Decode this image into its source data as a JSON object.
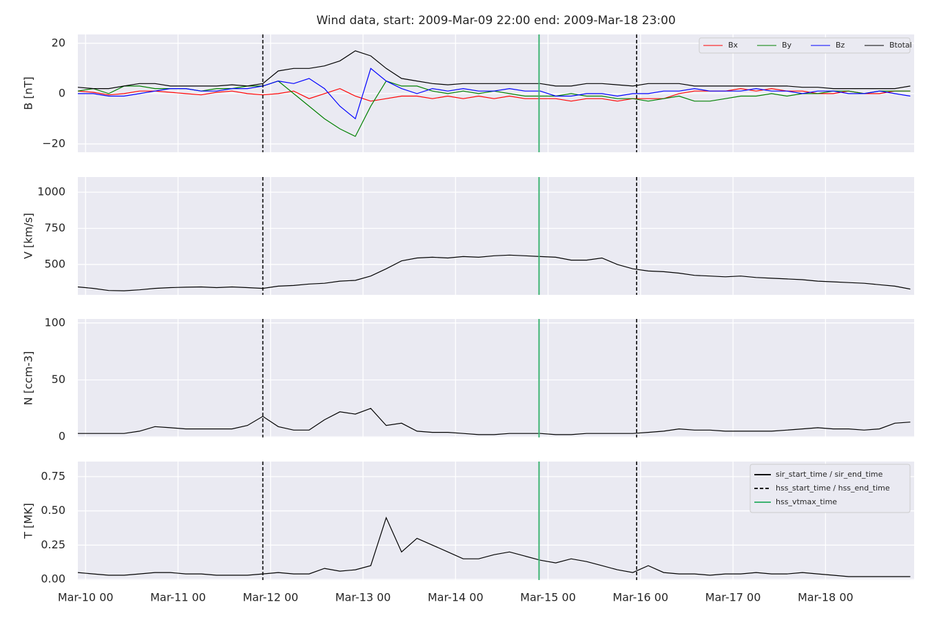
{
  "chart_data": [
    {
      "type": "line",
      "title": "Wind data, start: 2009-Mar-09 22:00  end: 2009-Mar-18 23:00",
      "ylabel": "B [nT]",
      "x": [
        "2009-03-09T22:00",
        "2009-03-10T02:00",
        "2009-03-10T06:00",
        "2009-03-10T10:00",
        "2009-03-10T14:00",
        "2009-03-10T18:00",
        "2009-03-10T22:00",
        "2009-03-11T02:00",
        "2009-03-11T06:00",
        "2009-03-11T10:00",
        "2009-03-11T14:00",
        "2009-03-11T18:00",
        "2009-03-11T22:00",
        "2009-03-12T02:00",
        "2009-03-12T06:00",
        "2009-03-12T10:00",
        "2009-03-12T14:00",
        "2009-03-12T18:00",
        "2009-03-12T22:00",
        "2009-03-13T02:00",
        "2009-03-13T06:00",
        "2009-03-13T10:00",
        "2009-03-13T14:00",
        "2009-03-13T18:00",
        "2009-03-13T22:00",
        "2009-03-14T02:00",
        "2009-03-14T06:00",
        "2009-03-14T10:00",
        "2009-03-14T14:00",
        "2009-03-14T18:00",
        "2009-03-14T22:00",
        "2009-03-15T02:00",
        "2009-03-15T06:00",
        "2009-03-15T10:00",
        "2009-03-15T14:00",
        "2009-03-15T18:00",
        "2009-03-15T22:00",
        "2009-03-16T02:00",
        "2009-03-16T06:00",
        "2009-03-16T10:00",
        "2009-03-16T14:00",
        "2009-03-16T18:00",
        "2009-03-16T22:00",
        "2009-03-17T02:00",
        "2009-03-17T06:00",
        "2009-03-17T10:00",
        "2009-03-17T14:00",
        "2009-03-17T18:00",
        "2009-03-17T22:00",
        "2009-03-18T02:00",
        "2009-03-18T06:00",
        "2009-03-18T10:00",
        "2009-03-18T14:00",
        "2009-03-18T18:00",
        "2009-03-18T22:00"
      ],
      "series": [
        {
          "name": "Bx",
          "color": "#ff0000",
          "values": [
            1,
            0.5,
            -0.5,
            0,
            1,
            1,
            0.5,
            0,
            -0.5,
            0.5,
            1,
            0,
            -0.5,
            0,
            1,
            -2,
            0,
            2,
            -1,
            -3,
            -2,
            -1,
            -1,
            -2,
            -1,
            -2,
            -1,
            -2,
            -1,
            -2,
            -2,
            -2,
            -3,
            -2,
            -2,
            -3,
            -2,
            -2,
            -2,
            0,
            1,
            1,
            1,
            2,
            1,
            2,
            1,
            1,
            0,
            0,
            1,
            0,
            0,
            1,
            1
          ]
        },
        {
          "name": "By",
          "color": "#008000",
          "values": [
            1,
            2,
            0,
            3,
            3,
            2,
            2,
            2,
            1,
            2,
            2,
            3,
            3,
            5,
            0,
            -5,
            -10,
            -14,
            -17,
            -5,
            5,
            3,
            3,
            1,
            0,
            1,
            0,
            1,
            0,
            -1,
            -1,
            -1,
            0,
            -1,
            -1,
            -2,
            -2,
            -3,
            -2,
            -1,
            -3,
            -3,
            -2,
            -1,
            -1,
            0,
            -1,
            0,
            0,
            1,
            1,
            0,
            1,
            1,
            1
          ]
        },
        {
          "name": "Bz",
          "color": "#0000ff",
          "values": [
            0,
            0,
            -1,
            -1,
            0,
            1,
            2,
            2,
            1,
            1,
            2,
            2,
            3,
            5,
            4,
            6,
            2,
            -5,
            -10,
            10,
            5,
            2,
            0,
            2,
            1,
            2,
            1,
            1,
            2,
            1,
            1,
            -1,
            -1,
            0,
            0,
            -1,
            0,
            0,
            1,
            1,
            2,
            1,
            1,
            1,
            2,
            1,
            1,
            0,
            1,
            1,
            0,
            0,
            1,
            0,
            -1
          ]
        },
        {
          "name": "Btotal",
          "color": "#000000",
          "values": [
            2.5,
            2,
            2,
            3,
            4,
            4,
            3,
            3,
            3,
            3,
            3.5,
            3,
            4,
            9,
            10,
            10,
            11,
            13,
            17,
            15,
            10,
            6,
            5,
            4,
            3.5,
            4,
            4,
            4,
            4,
            4,
            4,
            3,
            3,
            4,
            4,
            3.5,
            3,
            4,
            4,
            4,
            3,
            3,
            3,
            3,
            3,
            3,
            3,
            2.5,
            2.5,
            2,
            2,
            2,
            2,
            2,
            3
          ]
        }
      ],
      "ylim": [
        -23.3,
        23.5
      ],
      "yticks": [
        {
          "value": -20,
          "label": "−20"
        },
        0,
        20
      ],
      "grid": true,
      "legend": "upper right"
    },
    {
      "type": "line",
      "ylabel": "V [km/s]",
      "x": [
        "2009-03-09T22:00",
        "2009-03-10T02:00",
        "2009-03-10T06:00",
        "2009-03-10T10:00",
        "2009-03-10T14:00",
        "2009-03-10T18:00",
        "2009-03-10T22:00",
        "2009-03-11T02:00",
        "2009-03-11T06:00",
        "2009-03-11T10:00",
        "2009-03-11T14:00",
        "2009-03-11T18:00",
        "2009-03-11T22:00",
        "2009-03-12T02:00",
        "2009-03-12T06:00",
        "2009-03-12T10:00",
        "2009-03-12T14:00",
        "2009-03-12T18:00",
        "2009-03-12T22:00",
        "2009-03-13T02:00",
        "2009-03-13T06:00",
        "2009-03-13T10:00",
        "2009-03-13T14:00",
        "2009-03-13T18:00",
        "2009-03-13T22:00",
        "2009-03-14T02:00",
        "2009-03-14T06:00",
        "2009-03-14T10:00",
        "2009-03-14T14:00",
        "2009-03-14T18:00",
        "2009-03-14T22:00",
        "2009-03-15T02:00",
        "2009-03-15T06:00",
        "2009-03-15T10:00",
        "2009-03-15T14:00",
        "2009-03-15T18:00",
        "2009-03-15T22:00",
        "2009-03-16T02:00",
        "2009-03-16T06:00",
        "2009-03-16T10:00",
        "2009-03-16T14:00",
        "2009-03-16T18:00",
        "2009-03-16T22:00",
        "2009-03-17T02:00",
        "2009-03-17T06:00",
        "2009-03-17T10:00",
        "2009-03-17T14:00",
        "2009-03-17T18:00",
        "2009-03-17T22:00",
        "2009-03-18T02:00",
        "2009-03-18T06:00",
        "2009-03-18T10:00",
        "2009-03-18T14:00",
        "2009-03-18T18:00",
        "2009-03-18T22:00"
      ],
      "series": [
        {
          "name": "V",
          "color": "#000000",
          "values": [
            345,
            335,
            320,
            318,
            325,
            335,
            340,
            343,
            345,
            340,
            345,
            340,
            335,
            350,
            355,
            365,
            370,
            385,
            390,
            420,
            470,
            525,
            545,
            550,
            545,
            555,
            550,
            560,
            565,
            560,
            555,
            550,
            530,
            530,
            545,
            500,
            470,
            455,
            450,
            440,
            425,
            420,
            415,
            420,
            410,
            405,
            400,
            395,
            385,
            380,
            375,
            370,
            360,
            350,
            330
          ]
        }
      ],
      "ylim": [
        290,
        1105
      ],
      "yticks": [
        500,
        750,
        1000
      ],
      "grid": true
    },
    {
      "type": "line",
      "ylabel": "N [ccm-3]",
      "x": [
        "2009-03-09T22:00",
        "2009-03-10T02:00",
        "2009-03-10T06:00",
        "2009-03-10T10:00",
        "2009-03-10T14:00",
        "2009-03-10T18:00",
        "2009-03-10T22:00",
        "2009-03-11T02:00",
        "2009-03-11T06:00",
        "2009-03-11T10:00",
        "2009-03-11T14:00",
        "2009-03-11T18:00",
        "2009-03-11T22:00",
        "2009-03-12T02:00",
        "2009-03-12T06:00",
        "2009-03-12T10:00",
        "2009-03-12T14:00",
        "2009-03-12T18:00",
        "2009-03-12T22:00",
        "2009-03-13T02:00",
        "2009-03-13T06:00",
        "2009-03-13T10:00",
        "2009-03-13T14:00",
        "2009-03-13T18:00",
        "2009-03-13T22:00",
        "2009-03-14T02:00",
        "2009-03-14T06:00",
        "2009-03-14T10:00",
        "2009-03-14T14:00",
        "2009-03-14T18:00",
        "2009-03-14T22:00",
        "2009-03-15T02:00",
        "2009-03-15T06:00",
        "2009-03-15T10:00",
        "2009-03-15T14:00",
        "2009-03-15T18:00",
        "2009-03-15T22:00",
        "2009-03-16T02:00",
        "2009-03-16T06:00",
        "2009-03-16T10:00",
        "2009-03-16T14:00",
        "2009-03-16T18:00",
        "2009-03-16T22:00",
        "2009-03-17T02:00",
        "2009-03-17T06:00",
        "2009-03-17T10:00",
        "2009-03-17T14:00",
        "2009-03-17T18:00",
        "2009-03-17T22:00",
        "2009-03-18T02:00",
        "2009-03-18T06:00",
        "2009-03-18T10:00",
        "2009-03-18T14:00",
        "2009-03-18T18:00",
        "2009-03-18T22:00"
      ],
      "series": [
        {
          "name": "N",
          "color": "#000000",
          "values": [
            3,
            3,
            3,
            3,
            5,
            9,
            8,
            7,
            7,
            7,
            7,
            10,
            18,
            9,
            6,
            6,
            15,
            22,
            20,
            25,
            10,
            12,
            5,
            4,
            4,
            3,
            2,
            2,
            3,
            3,
            3,
            2,
            2,
            3,
            3,
            3,
            3,
            4,
            5,
            7,
            6,
            6,
            5,
            5,
            5,
            5,
            6,
            7,
            8,
            7,
            7,
            6,
            7,
            12,
            13
          ]
        }
      ],
      "ylim": [
        -0.5,
        103.5
      ],
      "yticks": [
        0,
        50,
        100
      ],
      "grid": true
    },
    {
      "type": "line",
      "ylabel": "T [MK]",
      "x": [
        "2009-03-09T22:00",
        "2009-03-10T02:00",
        "2009-03-10T06:00",
        "2009-03-10T10:00",
        "2009-03-10T14:00",
        "2009-03-10T18:00",
        "2009-03-10T22:00",
        "2009-03-11T02:00",
        "2009-03-11T06:00",
        "2009-03-11T10:00",
        "2009-03-11T14:00",
        "2009-03-11T18:00",
        "2009-03-11T22:00",
        "2009-03-12T02:00",
        "2009-03-12T06:00",
        "2009-03-12T10:00",
        "2009-03-12T14:00",
        "2009-03-12T18:00",
        "2009-03-12T22:00",
        "2009-03-13T02:00",
        "2009-03-13T06:00",
        "2009-03-13T10:00",
        "2009-03-13T14:00",
        "2009-03-13T18:00",
        "2009-03-13T22:00",
        "2009-03-14T02:00",
        "2009-03-14T06:00",
        "2009-03-14T10:00",
        "2009-03-14T14:00",
        "2009-03-14T18:00",
        "2009-03-14T22:00",
        "2009-03-15T02:00",
        "2009-03-15T06:00",
        "2009-03-15T10:00",
        "2009-03-15T14:00",
        "2009-03-15T18:00",
        "2009-03-15T22:00",
        "2009-03-16T02:00",
        "2009-03-16T06:00",
        "2009-03-16T10:00",
        "2009-03-16T14:00",
        "2009-03-16T18:00",
        "2009-03-16T22:00",
        "2009-03-17T02:00",
        "2009-03-17T06:00",
        "2009-03-17T10:00",
        "2009-03-17T14:00",
        "2009-03-17T18:00",
        "2009-03-17T22:00",
        "2009-03-18T02:00",
        "2009-03-18T06:00",
        "2009-03-18T10:00",
        "2009-03-18T14:00",
        "2009-03-18T18:00",
        "2009-03-18T22:00"
      ],
      "series": [
        {
          "name": "T",
          "color": "#000000",
          "values": [
            0.05,
            0.04,
            0.03,
            0.03,
            0.04,
            0.05,
            0.05,
            0.04,
            0.04,
            0.03,
            0.03,
            0.03,
            0.04,
            0.05,
            0.04,
            0.04,
            0.08,
            0.06,
            0.07,
            0.1,
            0.45,
            0.2,
            0.3,
            0.25,
            0.2,
            0.15,
            0.15,
            0.18,
            0.2,
            0.17,
            0.14,
            0.12,
            0.15,
            0.13,
            0.1,
            0.07,
            0.05,
            0.1,
            0.05,
            0.04,
            0.04,
            0.03,
            0.04,
            0.04,
            0.05,
            0.04,
            0.04,
            0.05,
            0.04,
            0.03,
            0.02,
            0.02,
            0.02,
            0.02,
            0.02
          ]
        }
      ],
      "ylim": [
        -0.005,
        0.86
      ],
      "yticks": [
        {
          "value": 0,
          "label": "0.00"
        },
        {
          "value": 0.25,
          "label": "0.25"
        },
        {
          "value": 0.5,
          "label": "0.50"
        },
        {
          "value": 0.75,
          "label": "0.75"
        }
      ],
      "grid": true,
      "xlim": [
        "2009-03-09T22:00",
        "2009-03-18T23:00"
      ],
      "xticks": [
        {
          "value": "2009-03-10T00:00",
          "label": "Mar-10 00"
        },
        {
          "value": "2009-03-11T00:00",
          "label": "Mar-11 00"
        },
        {
          "value": "2009-03-12T00:00",
          "label": "Mar-12 00"
        },
        {
          "value": "2009-03-13T00:00",
          "label": "Mar-13 00"
        },
        {
          "value": "2009-03-14T00:00",
          "label": "Mar-14 00"
        },
        {
          "value": "2009-03-15T00:00",
          "label": "Mar-15 00"
        },
        {
          "value": "2009-03-16T00:00",
          "label": "Mar-16 00"
        },
        {
          "value": "2009-03-17T00:00",
          "label": "Mar-17 00"
        },
        {
          "value": "2009-03-18T00:00",
          "label": "Mar-18 00"
        }
      ],
      "events": [
        {
          "name": "sir_start_time / sir_end_time",
          "color": "#000000",
          "style": "solid",
          "times": []
        },
        {
          "name": "hss_start_time / hss_end_time",
          "color": "#000000",
          "style": "dashed",
          "times": [
            "2009-03-11T22:00",
            "2009-03-15T23:00"
          ]
        },
        {
          "name": "hss_vtmax_time",
          "color": "#3cb371",
          "style": "solid",
          "times": [
            "2009-03-14T21:40"
          ]
        }
      ],
      "legend": "upper right"
    }
  ]
}
